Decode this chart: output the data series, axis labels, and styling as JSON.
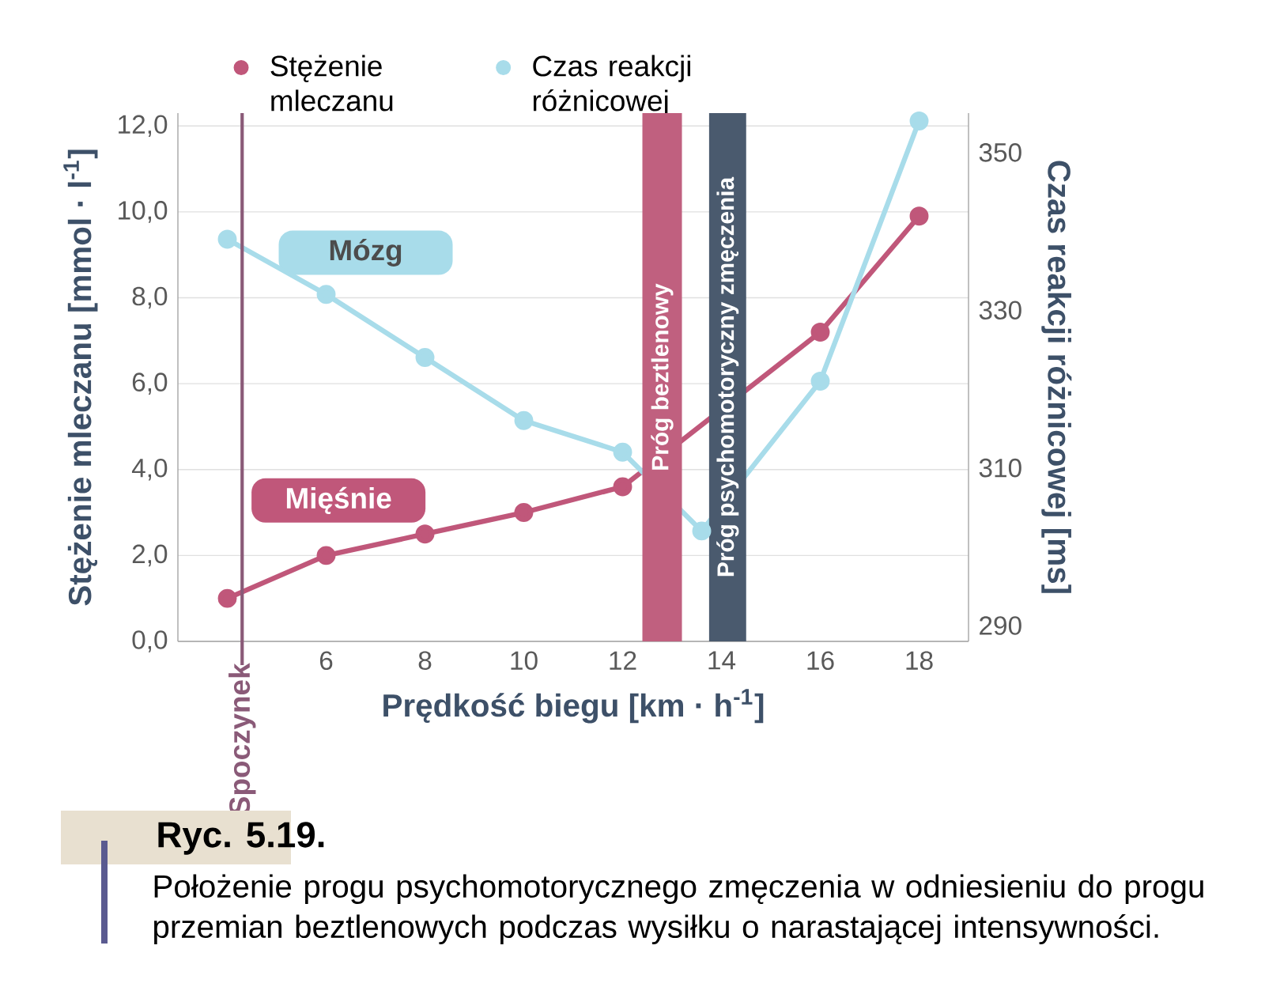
{
  "chart_data": {
    "type": "line",
    "xlabel": "Prędkość biegu [km · h$^{-1}$]",
    "ylabel": "Stężenie mleczanu [mmol · l$^{-1}$]",
    "y2label": "Czas reakcji różnicowej [ms]",
    "xlim": [
      3,
      19
    ],
    "xticks": [
      6,
      8,
      10,
      12,
      14,
      16,
      18
    ],
    "ylim": [
      0,
      12.3
    ],
    "yticks": [
      {
        "value": 0,
        "label": "0,0"
      },
      {
        "value": 2,
        "label": "2,0"
      },
      {
        "value": 4,
        "label": "4,0"
      },
      {
        "value": 6,
        "label": "6,0"
      },
      {
        "value": 8,
        "label": "8,0"
      },
      {
        "value": 10,
        "label": "10,0"
      },
      {
        "value": 12,
        "label": "12,0"
      }
    ],
    "y2lim": [
      288,
      355
    ],
    "y2ticks": [
      290,
      310,
      330,
      350
    ],
    "series": [
      {
        "name": "Stężenie mleczanu",
        "color": "#c0577a",
        "x": [
          4,
          6,
          8,
          10,
          12,
          16,
          18
        ],
        "values": [
          1.0,
          2.0,
          2.5,
          3.0,
          3.6,
          7.2,
          9.9
        ]
      },
      {
        "name": "Czas reakcji różnicowej",
        "color": "#a8dcea",
        "axis": "y2",
        "x": [
          4,
          6,
          8,
          10,
          12,
          13.6,
          16,
          18
        ],
        "values": [
          339,
          332,
          324,
          316,
          312,
          302,
          321,
          354
        ]
      }
    ],
    "bands": [
      {
        "axis": "x",
        "from": 12.4,
        "to": 13.2,
        "label": "Próg beztlenowy",
        "color": "#c0607f"
      },
      {
        "axis": "x",
        "from": 13.75,
        "to": 14.5,
        "label": "Próg psychomotoryczny zmęczenia",
        "color": "#4a5a6e"
      }
    ],
    "ref_lines": [
      {
        "axis": "x",
        "value": 4.3,
        "label": "Spoczynek",
        "color": "#8a5a78"
      }
    ],
    "annotations": [
      "Mózg",
      "Mięśnie",
      "Ryc. 5.19.",
      "Położenie progu psychomotorycznego zmęczenia w odniesieniu do progu przemian beztlenowych podczas wysiłku o narastającej intensywności."
    ],
    "grid": "y",
    "legend": "top left",
    "marker": "circle",
    "line_style": "solid"
  }
}
